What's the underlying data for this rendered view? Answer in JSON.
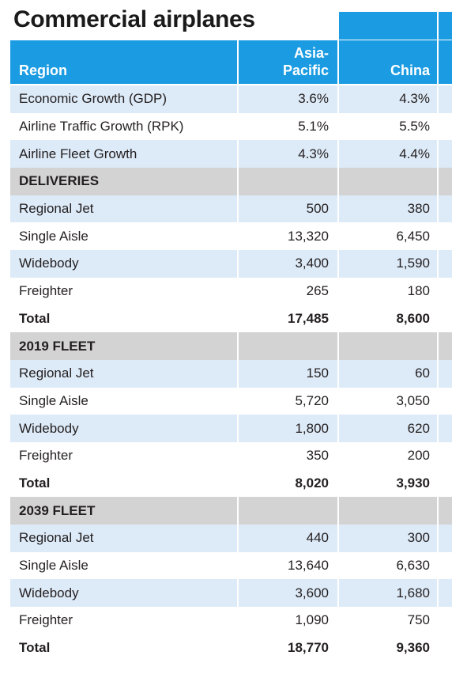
{
  "title": "Commercial airplanes",
  "header": {
    "region": "Region",
    "asia_line1": "Asia-",
    "asia_line2": "Pacific",
    "china": "China"
  },
  "rows": [
    {
      "label": "Economic Growth (GDP)",
      "asia": "3.6%",
      "china": "4.3%",
      "type": "light"
    },
    {
      "label": "Airline Traffic Growth (RPK)",
      "asia": "5.1%",
      "china": "5.5%",
      "type": "white"
    },
    {
      "label": "Airline Fleet Growth",
      "asia": "4.3%",
      "china": "4.4%",
      "type": "light"
    },
    {
      "label": "DELIVERIES",
      "asia": "",
      "china": "",
      "type": "section"
    },
    {
      "label": "Regional Jet",
      "asia": "500",
      "china": "380",
      "type": "light"
    },
    {
      "label": "Single Aisle",
      "asia": "13,320",
      "china": "6,450",
      "type": "white"
    },
    {
      "label": "Widebody",
      "asia": "3,400",
      "china": "1,590",
      "type": "light"
    },
    {
      "label": "Freighter",
      "asia": "265",
      "china": "180",
      "type": "white"
    },
    {
      "label": "Total",
      "asia": "17,485",
      "china": "8,600",
      "type": "total"
    },
    {
      "label": "2019 FLEET",
      "asia": "",
      "china": "",
      "type": "section"
    },
    {
      "label": "Regional Jet",
      "asia": "150",
      "china": "60",
      "type": "light"
    },
    {
      "label": "Single Aisle",
      "asia": "5,720",
      "china": "3,050",
      "type": "white"
    },
    {
      "label": "Widebody",
      "asia": "1,800",
      "china": "620",
      "type": "light"
    },
    {
      "label": "Freighter",
      "asia": "350",
      "china": "200",
      "type": "white"
    },
    {
      "label": "Total",
      "asia": "8,020",
      "china": "3,930",
      "type": "total"
    },
    {
      "label": "2039 FLEET",
      "asia": "",
      "china": "",
      "type": "section"
    },
    {
      "label": "Regional Jet",
      "asia": "440",
      "china": "300",
      "type": "light"
    },
    {
      "label": "Single Aisle",
      "asia": "13,640",
      "china": "6,630",
      "type": "white"
    },
    {
      "label": "Widebody",
      "asia": "3,600",
      "china": "1,680",
      "type": "light"
    },
    {
      "label": "Freighter",
      "asia": "1,090",
      "china": "750",
      "type": "white"
    },
    {
      "label": "Total",
      "asia": "18,770",
      "china": "9,360",
      "type": "total"
    }
  ],
  "colors": {
    "header_blue": "#1b9ce2",
    "row_light": "#ddeaf7",
    "section_gray": "#d3d3d3"
  }
}
